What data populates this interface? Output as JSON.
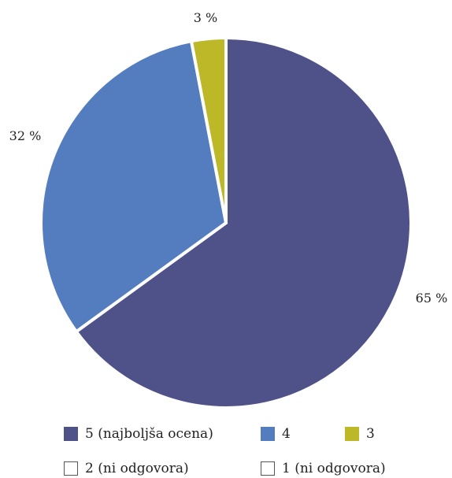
{
  "chart_data": {
    "type": "pie",
    "slices": [
      {
        "label": "5 (najboljša ocena)",
        "value": 65,
        "data_label": "65 %",
        "color": "#4F5288"
      },
      {
        "label": "4",
        "value": 32,
        "data_label": "32 %",
        "color": "#537DBF"
      },
      {
        "label": "3",
        "value": 3,
        "data_label": "3 %",
        "color": "#BCB827"
      },
      {
        "label": "2 (ni odgovora)",
        "value": 0,
        "data_label": "",
        "color": "#FFFFFF"
      },
      {
        "label": "1 (ni odgovora)",
        "value": 0,
        "data_label": "",
        "color": "#FFFFFF"
      }
    ],
    "legend_position": "bottom"
  }
}
